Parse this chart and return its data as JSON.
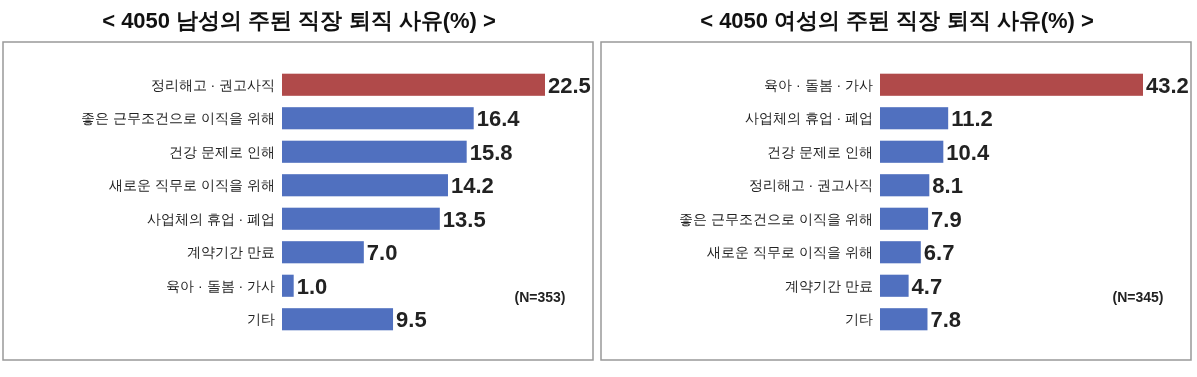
{
  "chart_data": [
    {
      "type": "bar",
      "orientation": "horizontal",
      "title": "< 4050 남성의 주된 직장 퇴직 사유(%) >",
      "categories": [
        "정리해고 · 권고사직",
        "좋은 근무조건으로 이직을 위해",
        "건강 문제로 인해",
        "새로운 직무로 이직을 위해",
        "사업체의 휴업 · 폐업",
        "계약기간 만료",
        "육아 · 돌봄 · 가사",
        "기타"
      ],
      "values": [
        22.5,
        16.4,
        15.8,
        14.2,
        13.5,
        7.0,
        1.0,
        9.5
      ],
      "value_labels": [
        "22.5",
        "16.4",
        "15.8",
        "14.2",
        "13.5",
        "7.0",
        "1.0",
        "9.5"
      ],
      "colors": [
        "#b04a4a",
        "#5070bf",
        "#5070bf",
        "#5070bf",
        "#5070bf",
        "#5070bf",
        "#5070bf",
        "#5070bf"
      ],
      "annotations": [
        "(N=353)"
      ]
    },
    {
      "type": "bar",
      "orientation": "horizontal",
      "title": "< 4050 여성의 주된 직장 퇴직 사유(%) >",
      "categories": [
        "육아 · 돌봄 · 가사",
        "사업체의 휴업 · 폐업",
        "건강 문제로 인해",
        "정리해고 · 권고사직",
        "좋은 근무조건으로 이직을 위해",
        "새로운 직무로 이직을 위해",
        "계약기간 만료",
        "기타"
      ],
      "values": [
        43.2,
        11.2,
        10.4,
        8.1,
        7.9,
        6.7,
        4.7,
        7.8
      ],
      "value_labels": [
        "43.2",
        "11.2",
        "10.4",
        "8.1",
        "7.9",
        "6.7",
        "4.7",
        "7.8"
      ],
      "colors": [
        "#b04a4a",
        "#5070bf",
        "#5070bf",
        "#5070bf",
        "#5070bf",
        "#5070bf",
        "#5070bf",
        "#5070bf"
      ],
      "annotations": [
        "(N=345)"
      ]
    }
  ]
}
